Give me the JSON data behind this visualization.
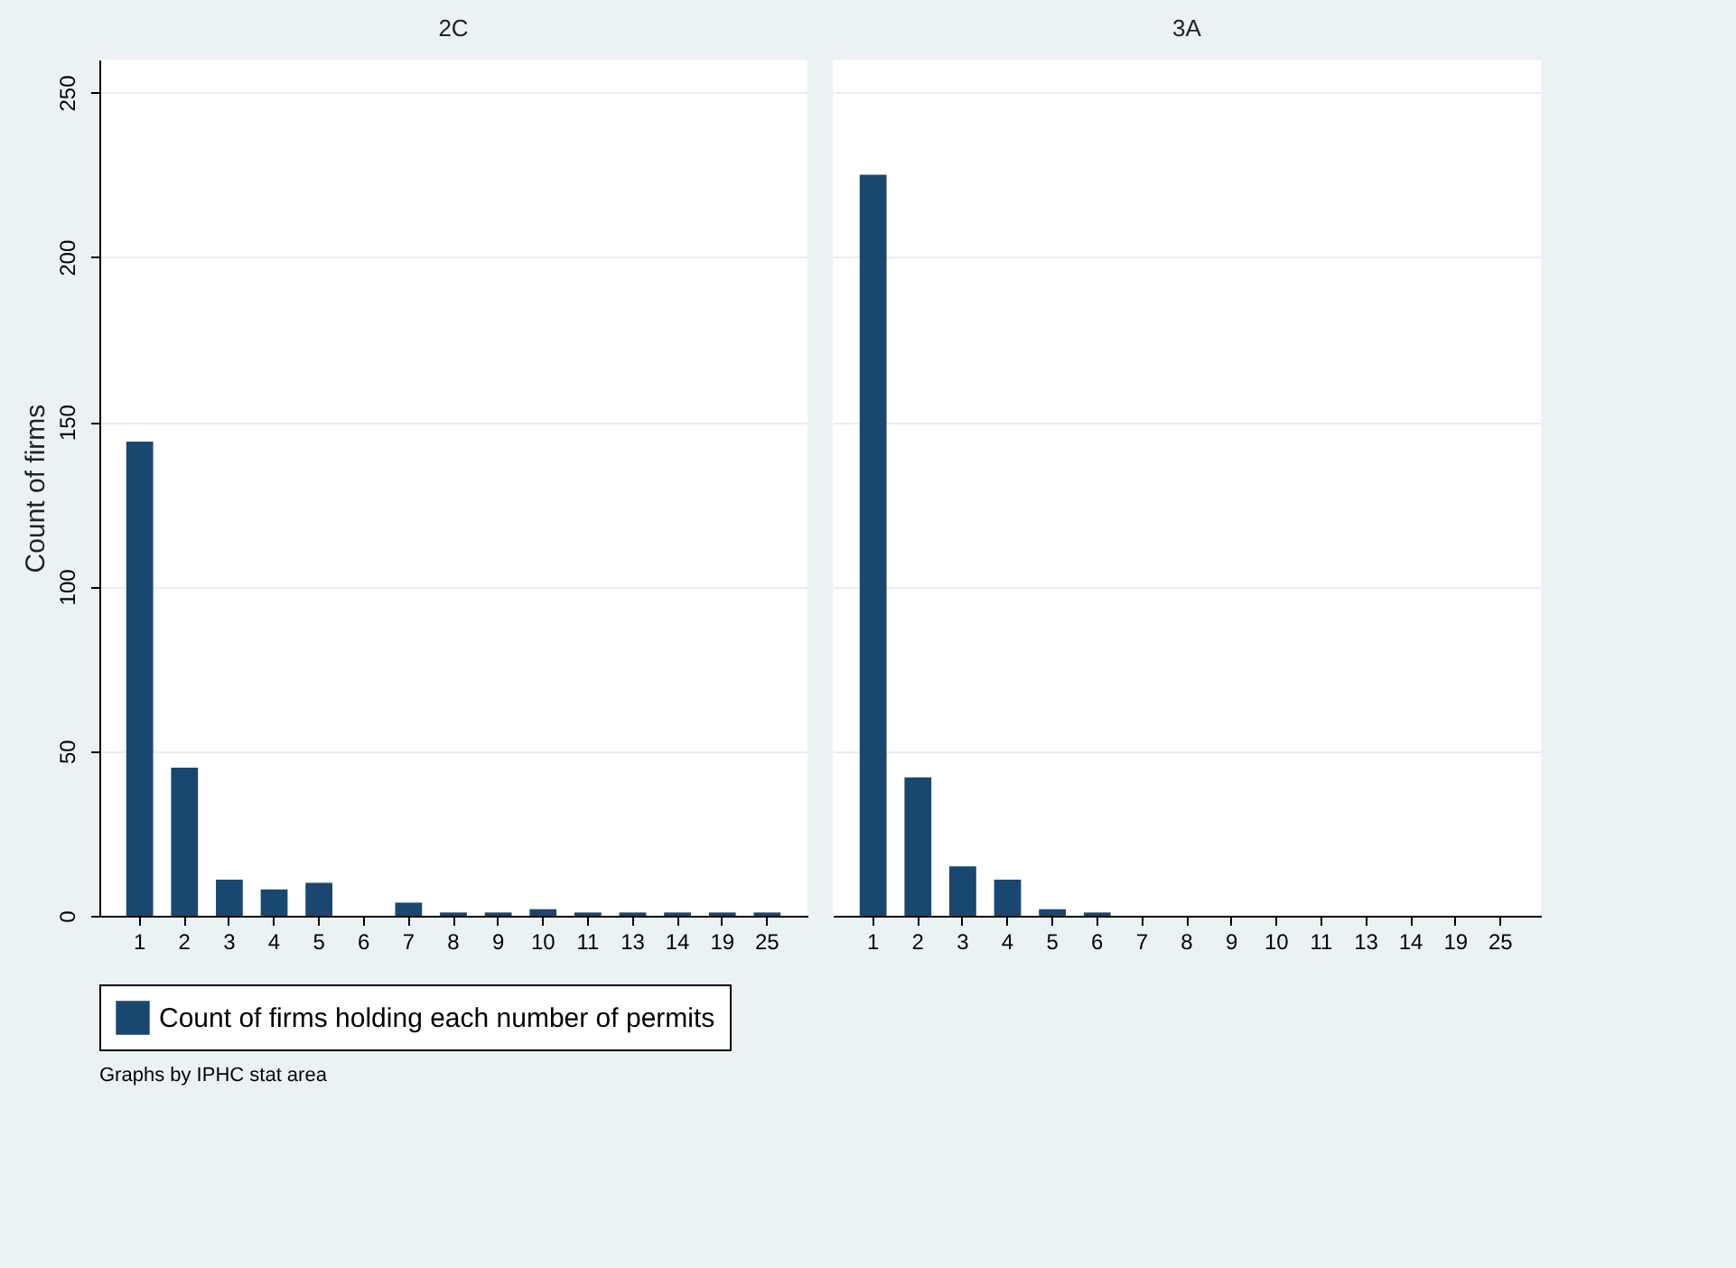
{
  "chart_data": [
    {
      "type": "bar",
      "title": "2C",
      "ylabel": "Count of firms",
      "categories": [
        "1",
        "2",
        "3",
        "4",
        "5",
        "6",
        "7",
        "8",
        "9",
        "10",
        "11",
        "13",
        "14",
        "19",
        "25"
      ],
      "series": [
        {
          "name": "Count of firms holding each number of permits",
          "color": "#1a476f",
          "values": [
            144,
            45,
            11,
            8,
            10,
            0,
            4,
            1,
            1,
            2,
            1,
            1,
            1,
            1,
            1
          ]
        }
      ],
      "ylim": [
        0,
        260
      ],
      "yticks": [
        0,
        50,
        100,
        150,
        200,
        250
      ],
      "grid": "y",
      "legend": "bottom",
      "annotations": [
        "Graphs by IPHC stat area"
      ]
    },
    {
      "type": "bar",
      "title": "3A",
      "categories": [
        "1",
        "2",
        "3",
        "4",
        "5",
        "6",
        "7",
        "8",
        "9",
        "10",
        "11",
        "13",
        "14",
        "19",
        "25"
      ],
      "series": [
        {
          "name": "Count of firms holding each number of permits",
          "color": "#1a476f",
          "values": [
            225,
            42,
            15,
            11,
            2,
            1,
            0,
            0,
            0,
            0,
            0,
            0,
            0,
            0,
            0
          ]
        }
      ],
      "ylim": [
        0,
        260
      ],
      "yticks": [
        0,
        50,
        100,
        150,
        200,
        250
      ],
      "grid": "y",
      "legend": "bottom",
      "tick_labels": "x"
    }
  ]
}
